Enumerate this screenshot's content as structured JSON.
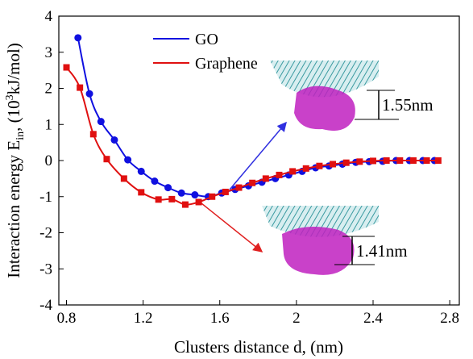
{
  "chart_data": {
    "type": "scatter",
    "x_label": "Clusters distance d, (nm)",
    "y_label": {
      "main": "Interaction energy E",
      "sub": "in",
      "mid": ", (10",
      "sup": "3",
      "end": "kJ/mol)"
    },
    "xlim": [
      0.76,
      2.85
    ],
    "xticks": [
      0.8,
      1.2,
      1.6,
      2.0,
      2.4,
      2.8
    ],
    "ylim": [
      -4,
      4
    ],
    "yticks": [
      -4,
      -3,
      -2,
      -1,
      0,
      1,
      2,
      3,
      4
    ],
    "series": [
      {
        "name": "GO",
        "color": "#1010e0",
        "marker": "circle",
        "x": [
          0.86,
          0.92,
          0.98,
          1.05,
          1.12,
          1.19,
          1.26,
          1.33,
          1.4,
          1.47,
          1.54,
          1.61,
          1.68,
          1.75,
          1.82,
          1.89,
          1.96,
          2.03,
          2.1,
          2.17,
          2.24,
          2.31,
          2.38,
          2.45,
          2.52,
          2.59,
          2.66,
          2.72
        ],
        "values": [
          3.4,
          1.85,
          1.08,
          0.57,
          0.02,
          -0.3,
          -0.57,
          -0.75,
          -0.9,
          -0.95,
          -1.0,
          -0.9,
          -0.8,
          -0.7,
          -0.6,
          -0.5,
          -0.4,
          -0.3,
          -0.2,
          -0.15,
          -0.1,
          -0.05,
          -0.03,
          -0.02,
          0,
          0,
          0,
          0
        ]
      },
      {
        "name": "Graphene",
        "color": "#e01010",
        "marker": "square",
        "x": [
          0.8,
          0.87,
          0.94,
          1.01,
          1.1,
          1.19,
          1.28,
          1.35,
          1.42,
          1.49,
          1.56,
          1.63,
          1.7,
          1.77,
          1.84,
          1.91,
          1.98,
          2.05,
          2.12,
          2.19,
          2.26,
          2.33,
          2.4,
          2.47,
          2.54,
          2.61,
          2.68,
          2.74
        ],
        "values": [
          2.58,
          2.02,
          0.73,
          0.04,
          -0.5,
          -0.88,
          -1.08,
          -1.07,
          -1.22,
          -1.15,
          -1.0,
          -0.87,
          -0.75,
          -0.62,
          -0.5,
          -0.4,
          -0.3,
          -0.22,
          -0.15,
          -0.1,
          -0.06,
          -0.03,
          -0.01,
          0,
          0,
          0,
          0,
          0
        ]
      }
    ],
    "annotations": [
      "1.55nm",
      "1.41nm"
    ]
  }
}
